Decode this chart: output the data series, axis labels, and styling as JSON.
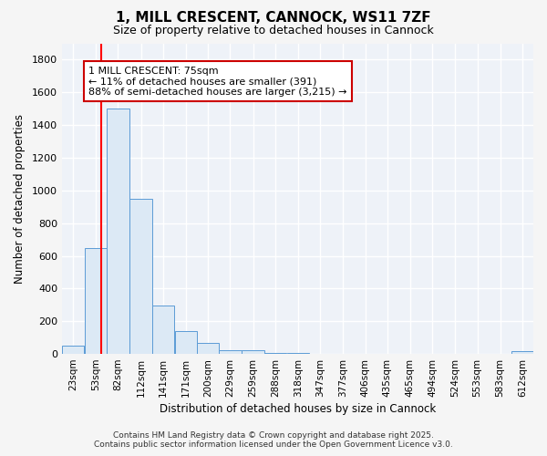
{
  "title": "1, MILL CRESCENT, CANNOCK, WS11 7ZF",
  "subtitle": "Size of property relative to detached houses in Cannock",
  "xlabel": "Distribution of detached houses by size in Cannock",
  "ylabel": "Number of detached properties",
  "bin_labels": [
    "23sqm",
    "53sqm",
    "82sqm",
    "112sqm",
    "141sqm",
    "171sqm",
    "200sqm",
    "229sqm",
    "259sqm",
    "288sqm",
    "318sqm",
    "347sqm",
    "377sqm",
    "406sqm",
    "435sqm",
    "465sqm",
    "494sqm",
    "524sqm",
    "553sqm",
    "583sqm",
    "612sqm"
  ],
  "bin_edges": [
    23,
    53,
    82,
    112,
    141,
    171,
    200,
    229,
    259,
    288,
    318,
    347,
    377,
    406,
    435,
    465,
    494,
    524,
    553,
    583,
    612
  ],
  "bin_width": 29,
  "bar_heights": [
    50,
    650,
    1500,
    950,
    295,
    140,
    70,
    25,
    20,
    5,
    5,
    0,
    0,
    0,
    0,
    0,
    0,
    0,
    0,
    0,
    15
  ],
  "bar_color": "#dce9f5",
  "bar_edge_color": "#5b9bd5",
  "red_line_x": 75,
  "annotation_text": "1 MILL CRESCENT: 75sqm\n← 11% of detached houses are smaller (391)\n88% of semi-detached houses are larger (3,215) →",
  "annotation_box_color": "#ffffff",
  "annotation_edge_color": "#cc0000",
  "ylim": [
    0,
    1900
  ],
  "yticks": [
    0,
    200,
    400,
    600,
    800,
    1000,
    1200,
    1400,
    1600,
    1800
  ],
  "bg_color": "#eef2f8",
  "grid_color": "#ffffff",
  "footer_line1": "Contains HM Land Registry data © Crown copyright and database right 2025.",
  "footer_line2": "Contains public sector information licensed under the Open Government Licence v3.0."
}
